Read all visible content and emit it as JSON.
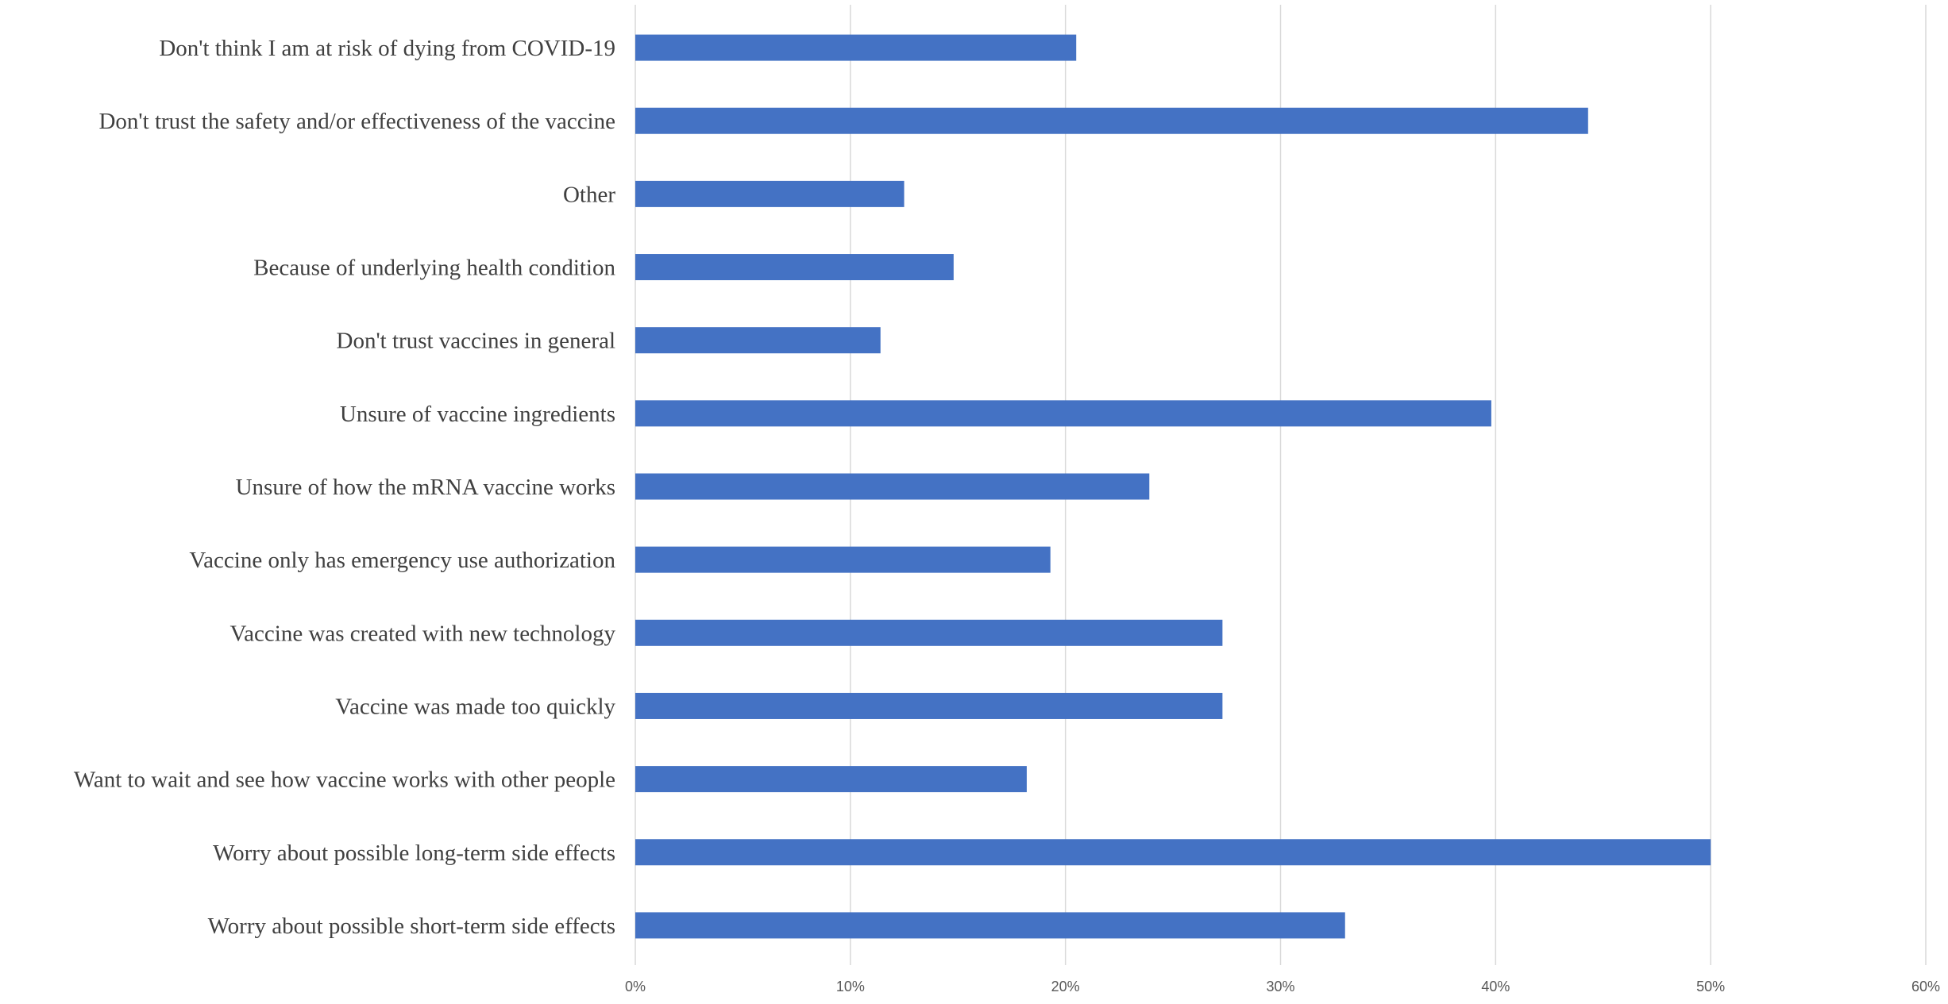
{
  "chart_data": {
    "type": "bar",
    "orientation": "horizontal",
    "categories": [
      "Don't think I am at risk of dying from COVID-19",
      "Don't trust the safety and/or effectiveness of the vaccine",
      "Other",
      "Because of underlying health condition",
      "Don't trust vaccines in general",
      "Unsure of vaccine ingredients",
      "Unsure of how the mRNA vaccine works",
      "Vaccine only has emergency use authorization",
      "Vaccine was created with new technology",
      "Vaccine was made too quickly",
      "Want to wait and see how vaccine works with other people",
      "Worry about possible long-term side effects",
      "Worry about possible short-term side effects"
    ],
    "values": [
      20.5,
      44.3,
      12.5,
      14.8,
      11.4,
      39.8,
      23.9,
      19.3,
      27.3,
      27.3,
      18.2,
      50.0,
      33.0
    ],
    "xlim": [
      0,
      60
    ],
    "x_ticks": [
      "0%",
      "10%",
      "20%",
      "30%",
      "40%",
      "50%",
      "60%"
    ],
    "x_tick_values": [
      0,
      10,
      20,
      30,
      40,
      50,
      60
    ],
    "grid": true,
    "bar_color": "#4472c4",
    "grid_color": "#d9d9d9",
    "title": "",
    "xlabel": "",
    "ylabel": ""
  }
}
